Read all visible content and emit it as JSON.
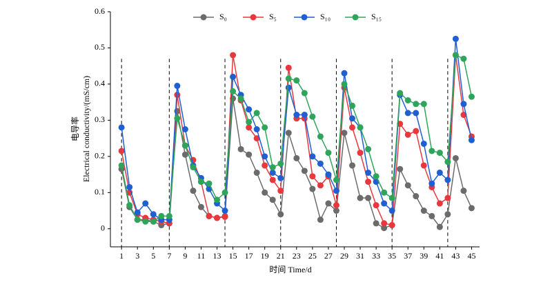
{
  "chart_data": {
    "type": "line",
    "xlabel": "时间 Time/d",
    "ylabel": [
      "电导率",
      "Electrical conductivity/(mS/cm)"
    ],
    "x": [
      1,
      2,
      3,
      4,
      5,
      6,
      7,
      8,
      9,
      10,
      11,
      12,
      13,
      14,
      15,
      16,
      17,
      18,
      19,
      20,
      21,
      22,
      23,
      24,
      25,
      26,
      27,
      28,
      29,
      30,
      31,
      32,
      33,
      34,
      35,
      36,
      37,
      38,
      39,
      40,
      41,
      42,
      43,
      44,
      45
    ],
    "series": [
      {
        "name": "S₀",
        "color": "#6b6b6b",
        "values": [
          0.165,
          0.06,
          0.025,
          0.025,
          0.02,
          0.01,
          0.015,
          0.325,
          0.205,
          0.105,
          0.06,
          0.035,
          0.03,
          0.035,
          0.36,
          0.22,
          0.205,
          0.155,
          0.1,
          0.08,
          0.04,
          0.265,
          0.195,
          0.16,
          0.11,
          0.025,
          0.07,
          0.05,
          0.265,
          0.175,
          0.085,
          0.085,
          0.015,
          0.002,
          0.01,
          0.165,
          0.12,
          0.09,
          0.05,
          0.035,
          0.005,
          0.04,
          0.195,
          0.105,
          0.057
        ]
      },
      {
        "name": "S₅",
        "color": "#e8383d",
        "values": [
          0.215,
          0.1,
          0.04,
          0.03,
          0.025,
          0.02,
          0.015,
          0.37,
          0.23,
          0.19,
          0.13,
          0.035,
          0.03,
          0.033,
          0.48,
          0.355,
          0.28,
          0.25,
          0.175,
          0.135,
          0.105,
          0.445,
          0.305,
          0.305,
          0.145,
          0.12,
          0.145,
          0.065,
          0.39,
          0.28,
          0.21,
          0.13,
          0.065,
          0.015,
          0.01,
          0.29,
          0.26,
          0.27,
          0.175,
          0.115,
          0.07,
          0.085,
          0.48,
          0.315,
          0.255
        ]
      },
      {
        "name": "S₁₀",
        "color": "#1f5fd1",
        "values": [
          0.28,
          0.115,
          0.045,
          0.07,
          0.04,
          0.025,
          0.025,
          0.395,
          0.275,
          0.175,
          0.14,
          0.11,
          0.07,
          0.05,
          0.42,
          0.37,
          0.33,
          0.275,
          0.2,
          0.155,
          0.14,
          0.39,
          0.315,
          0.315,
          0.2,
          0.18,
          0.15,
          0.105,
          0.43,
          0.305,
          0.28,
          0.155,
          0.13,
          0.07,
          0.05,
          0.37,
          0.32,
          0.32,
          0.235,
          0.125,
          0.155,
          0.135,
          0.525,
          0.345,
          0.245
        ]
      },
      {
        "name": "S₁₅",
        "color": "#2ea55a",
        "values": [
          0.175,
          0.065,
          0.025,
          0.02,
          0.02,
          0.035,
          0.035,
          0.305,
          0.23,
          0.17,
          0.13,
          0.125,
          0.08,
          0.1,
          0.38,
          0.36,
          0.295,
          0.32,
          0.28,
          0.17,
          0.18,
          0.415,
          0.41,
          0.375,
          0.31,
          0.255,
          0.21,
          0.135,
          0.4,
          0.34,
          0.28,
          0.22,
          0.145,
          0.1,
          0.085,
          0.375,
          0.355,
          0.345,
          0.345,
          0.215,
          0.21,
          0.185,
          0.48,
          0.47,
          0.365
        ]
      }
    ],
    "vlines": [
      1,
      7,
      14,
      21,
      28,
      35,
      42
    ],
    "xlim": [
      -0.4,
      46
    ],
    "xticks": [
      1,
      3,
      5,
      7,
      9,
      11,
      13,
      15,
      17,
      19,
      21,
      23,
      25,
      27,
      29,
      31,
      33,
      35,
      37,
      39,
      41,
      43,
      45
    ],
    "ylim": [
      -0.05,
      0.6
    ],
    "yticks": [
      0,
      0.1,
      0.2,
      0.3,
      0.4,
      0.5,
      0.6
    ],
    "legend": "top"
  }
}
